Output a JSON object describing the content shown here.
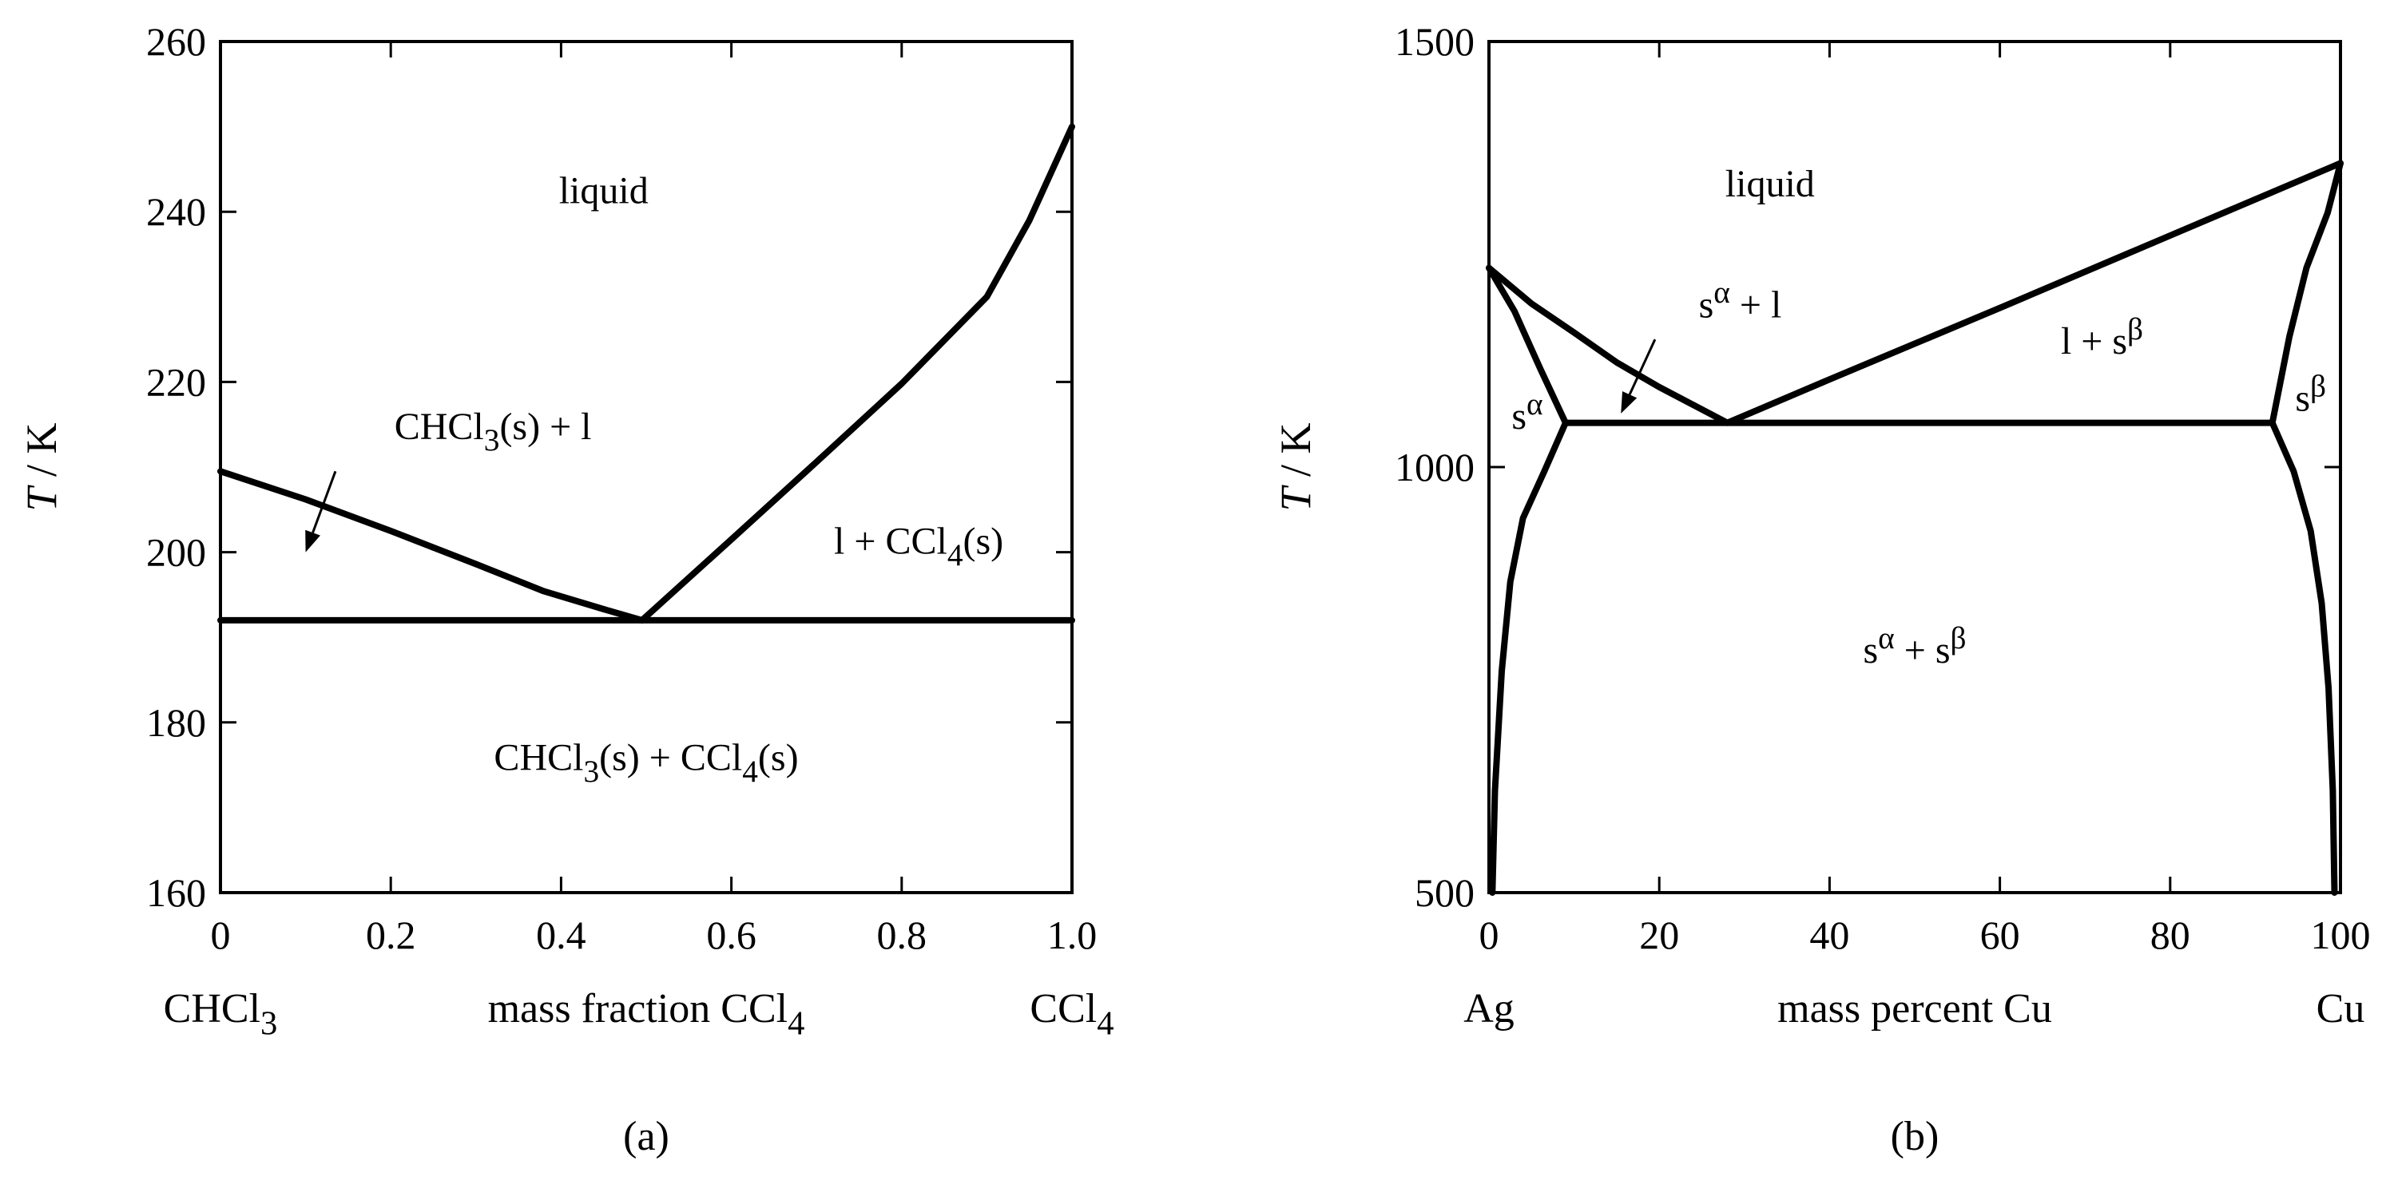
{
  "chart_data": [
    {
      "type": "line",
      "panel": "(a)",
      "ylabel": "T / K",
      "xlabel": "mass fraction CCl4",
      "xlabel_parts": {
        "main": "mass fraction CCl",
        "sub": "4"
      },
      "left_component": {
        "main": "CHCl",
        "sub": "3"
      },
      "right_component": {
        "main": "CCl",
        "sub": "4"
      },
      "xlim": [
        0,
        1.0
      ],
      "ylim": [
        160,
        260
      ],
      "xticks": [
        0,
        0.2,
        0.4,
        0.6,
        0.8,
        1.0
      ],
      "xtick_labels": [
        "0",
        "0.2",
        "0.4",
        "0.6",
        "0.8",
        "1.0"
      ],
      "yticks": [
        160,
        180,
        200,
        220,
        240,
        260
      ],
      "ytick_labels": [
        "160",
        "180",
        "200",
        "220",
        "240",
        "260"
      ],
      "series": [
        {
          "id": "liquidus-chcl3",
          "x": [
            0,
            0.1,
            0.2,
            0.3,
            0.38,
            0.45,
            0.495
          ],
          "y": [
            209.5,
            206.2,
            202.5,
            198.6,
            195.4,
            193.3,
            192
          ]
        },
        {
          "id": "liquidus-ccl4",
          "x": [
            0.495,
            0.6,
            0.7,
            0.8,
            0.9,
            0.95,
            1.0
          ],
          "y": [
            192,
            201.5,
            210.6,
            219.8,
            230,
            239,
            250
          ]
        },
        {
          "id": "eutectic-line",
          "x": [
            0,
            1.0
          ],
          "y": [
            192,
            192
          ]
        }
      ],
      "regions": [
        {
          "id": "liquid",
          "x": 0.45,
          "y": 241,
          "parts": [
            [
              "liquid",
              "n"
            ]
          ]
        },
        {
          "id": "chcl3-s-plus-l",
          "x": 0.32,
          "y": 213.3,
          "parts": [
            [
              "CHCl",
              "n"
            ],
            [
              "3",
              "sub"
            ],
            [
              "(s) + l",
              "n"
            ]
          ]
        },
        {
          "id": "l-plus-ccl4-s",
          "x": 0.82,
          "y": 199.8,
          "parts": [
            [
              "l + CCl",
              "n"
            ],
            [
              "4",
              "sub"
            ],
            [
              "(s)",
              "n"
            ]
          ]
        },
        {
          "id": "solids",
          "x": 0.5,
          "y": 174.4,
          "parts": [
            [
              "CHCl",
              "n"
            ],
            [
              "3",
              "sub"
            ],
            [
              "(s) + CCl",
              "n"
            ],
            [
              "4",
              "sub"
            ],
            [
              "(s)",
              "n"
            ]
          ]
        }
      ],
      "arrows": [
        {
          "points_to": "chcl3-s-plus-l",
          "from": [
            0.135,
            209.5
          ],
          "to": [
            0.1,
            200
          ]
        }
      ],
      "caption": "(a)"
    },
    {
      "type": "line",
      "panel": "(b)",
      "ylabel": "T / K",
      "xlabel": "mass percent Cu",
      "left_component": {
        "main": "Ag",
        "sub": ""
      },
      "right_component": {
        "main": "Cu",
        "sub": ""
      },
      "xlim": [
        0,
        100
      ],
      "ylim": [
        500,
        1500
      ],
      "xticks": [
        0,
        20,
        40,
        60,
        80,
        100
      ],
      "xtick_labels": [
        "0",
        "20",
        "40",
        "60",
        "80",
        "100"
      ],
      "yticks": [
        500,
        1000,
        1500
      ],
      "ytick_labels": [
        "500",
        "1000",
        "1500"
      ],
      "series": [
        {
          "id": "liquidus-ag",
          "x": [
            0,
            5,
            10,
            15,
            20,
            28
          ],
          "y": [
            1234,
            1192,
            1158,
            1123,
            1094,
            1052
          ]
        },
        {
          "id": "liquidus-cu",
          "x": [
            28,
            40,
            60,
            80,
            100
          ],
          "y": [
            1052,
            1103,
            1187,
            1272,
            1357
          ]
        },
        {
          "id": "eutectic-line",
          "x": [
            9,
            92
          ],
          "y": [
            1052,
            1052
          ]
        },
        {
          "id": "solidus-ag",
          "x": [
            0,
            3,
            6,
            9
          ],
          "y": [
            1234,
            1183,
            1116,
            1052
          ]
        },
        {
          "id": "solvus-ag",
          "x": [
            9,
            6.5,
            4,
            2.5,
            1.5,
            0.7,
            0.4
          ],
          "y": [
            1052,
            995,
            940,
            865,
            760,
            620,
            500
          ]
        },
        {
          "id": "solidus-cu",
          "x": [
            92,
            94,
            96,
            98.5,
            100
          ],
          "y": [
            1052,
            1153,
            1234,
            1299,
            1357
          ]
        },
        {
          "id": "solvus-cu",
          "x": [
            92,
            94.5,
            96.5,
            97.8,
            98.6,
            99.1,
            99.3
          ],
          "y": [
            1052,
            995,
            925,
            840,
            740,
            620,
            500
          ]
        }
      ],
      "regions": [
        {
          "id": "liquid",
          "x": 33,
          "y": 1318,
          "parts": [
            [
              "liquid",
              "n"
            ]
          ]
        },
        {
          "id": "s-alpha-plus-l",
          "x": 29.5,
          "y": 1176,
          "parts": [
            [
              "s",
              "n"
            ],
            [
              "α",
              "sup"
            ],
            [
              " + l",
              "n"
            ]
          ]
        },
        {
          "id": "l-plus-s-beta",
          "x": 72,
          "y": 1133,
          "parts": [
            [
              "l + s",
              "n"
            ],
            [
              "β",
              "sup"
            ]
          ]
        },
        {
          "id": "s-alpha",
          "x": 4.5,
          "y": 1045,
          "parts": [
            [
              "s",
              "n"
            ],
            [
              "α",
              "sup"
            ]
          ]
        },
        {
          "id": "s-beta",
          "x": 96.5,
          "y": 1066,
          "parts": [
            [
              "s",
              "n"
            ],
            [
              "β",
              "sup"
            ]
          ]
        },
        {
          "id": "s-alpha-plus-s-beta",
          "x": 50,
          "y": 770,
          "parts": [
            [
              "s",
              "n"
            ],
            [
              "α",
              "sup"
            ],
            [
              " + s",
              "n"
            ],
            [
              "β",
              "sup"
            ]
          ]
        }
      ],
      "arrows": [
        {
          "points_to": "s-alpha-plus-l",
          "from": [
            19.5,
            1150
          ],
          "to": [
            15.5,
            1063
          ]
        }
      ],
      "caption": "(b)"
    }
  ]
}
